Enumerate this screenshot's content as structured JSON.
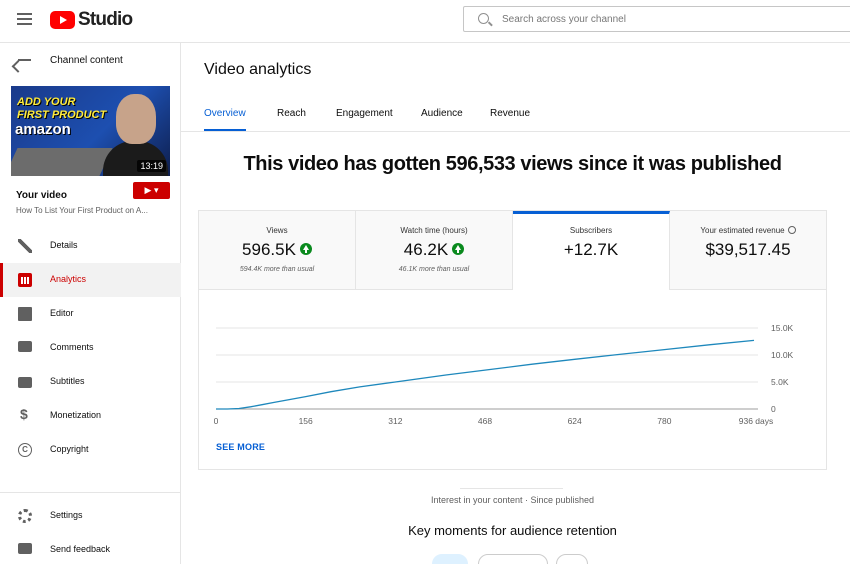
{
  "header": {
    "logo_text": "Studio",
    "search_placeholder": "Search across your channel"
  },
  "sidebar": {
    "back_label": "Channel content",
    "thumbnail": {
      "line1": "ADD YOUR",
      "line2": "FIRST PRODUCT",
      "line3": "amazon",
      "duration": "13:19"
    },
    "your_video_label": "Your video",
    "video_title": "How To List Your First Product on A...",
    "nav": [
      {
        "label": "Details",
        "icon": "pencil-icon"
      },
      {
        "label": "Analytics",
        "icon": "analytics-icon",
        "active": true
      },
      {
        "label": "Editor",
        "icon": "film-icon"
      },
      {
        "label": "Comments",
        "icon": "comment-icon"
      },
      {
        "label": "Subtitles",
        "icon": "subtitles-icon"
      },
      {
        "label": "Monetization",
        "icon": "dollar-icon"
      },
      {
        "label": "Copyright",
        "icon": "copyright-icon"
      }
    ],
    "bottom_nav": [
      {
        "label": "Settings",
        "icon": "gear-icon"
      },
      {
        "label": "Send feedback",
        "icon": "feedback-icon"
      }
    ]
  },
  "main": {
    "title": "Video analytics",
    "tabs": [
      "Overview",
      "Reach",
      "Engagement",
      "Audience",
      "Revenue"
    ],
    "active_tab": "Overview",
    "headline": "This video has gotten 596,533 views since it was published",
    "metrics": [
      {
        "label": "Views",
        "value": "596.5K",
        "sub": "594.4K more than usual",
        "trend": "up"
      },
      {
        "label": "Watch time (hours)",
        "value": "46.2K",
        "sub": "46.1K more than usual",
        "trend": "up"
      },
      {
        "label": "Subscribers",
        "value": "+12.7K",
        "sub": "",
        "selected": true
      },
      {
        "label": "Your estimated revenue",
        "value": "$39,517.45",
        "sub": ""
      }
    ],
    "see_more": "SEE MORE",
    "interest_caption": "Interest in your content · Since published",
    "key_moments_title": "Key moments for audience retention"
  },
  "chart_data": {
    "type": "line",
    "series": [
      {
        "x": [
          0,
          20,
          40,
          60,
          80,
          100,
          156,
          200,
          250,
          312,
          400,
          468,
          550,
          624,
          700,
          780,
          860,
          936
        ],
        "y": [
          0,
          0,
          100,
          400,
          800,
          1200,
          2300,
          3200,
          4100,
          5000,
          6300,
          7200,
          8300,
          9200,
          10100,
          11000,
          11900,
          12700
        ]
      }
    ],
    "x_ticks": [
      "0",
      "156",
      "312",
      "468",
      "624",
      "780",
      "936 days"
    ],
    "x_tick_values": [
      0,
      156,
      312,
      468,
      624,
      780,
      936
    ],
    "y_ticks": [
      "0",
      "5.0K",
      "10.0K",
      "15.0K"
    ],
    "y_tick_values": [
      0,
      5000,
      10000,
      15000
    ],
    "xlim": [
      0,
      936
    ],
    "ylim": [
      0,
      15000
    ],
    "grid": true,
    "color": "#1e88bc"
  },
  "colors": {
    "accent": "#065fd4",
    "brand_red": "#cc0000",
    "trend_up": "#0a8a1e"
  }
}
